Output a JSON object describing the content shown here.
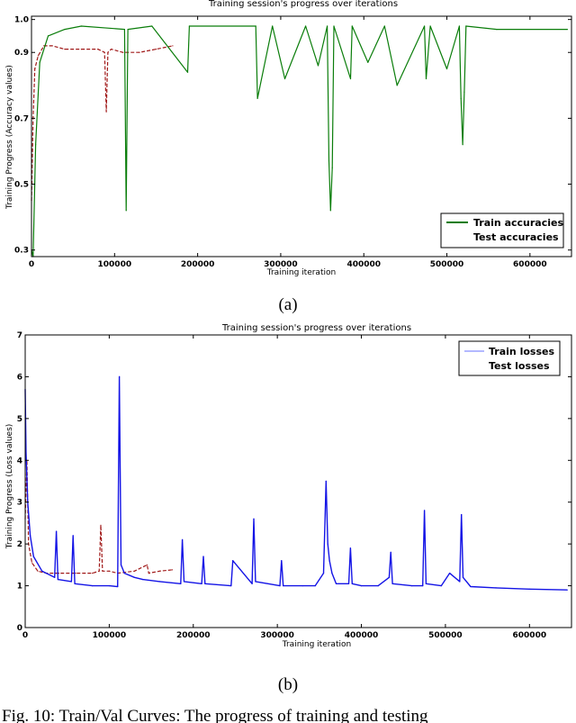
{
  "figure_caption": "Fig. 10: Train/Val Curves: The progress of training and testing",
  "panel_labels": [
    "(a)",
    "(b)"
  ],
  "colors": {
    "train_accuracy": "#0a7d0a",
    "test_curve": "#a01818",
    "train_loss": "#1414e6"
  },
  "chart_data": [
    {
      "type": "line",
      "title": "Training session's progress over iterations",
      "xlabel": "Training iteration",
      "ylabel": "Training Progress (Accuracy values)",
      "xlim": [
        0,
        650000
      ],
      "ylim": [
        0.28,
        1.01
      ],
      "xticks": [
        0,
        100000,
        200000,
        300000,
        400000,
        500000,
        600000
      ],
      "xtick_labels": [
        "0",
        "100000",
        "200000",
        "300000",
        "400000",
        "500000",
        "600000"
      ],
      "yticks": [
        0.3,
        0.5,
        0.7,
        0.9,
        1.0
      ],
      "ytick_labels": [
        "0.3",
        "0.5",
        "0.7",
        "0.9",
        "1.0"
      ],
      "grid": false,
      "legend_position": "bottom-right",
      "series": [
        {
          "name": "Train accuracies",
          "color": "#0a7d0a",
          "baseline": 0.98,
          "x": [
            0,
            2000,
            5000,
            10000,
            20000,
            40000,
            60000,
            112000,
            114000,
            116000,
            145000,
            188000,
            190000,
            270000,
            272000,
            290000,
            305000,
            330000,
            345000,
            356000,
            358000,
            360000,
            362000,
            364000,
            384000,
            386000,
            405000,
            425000,
            440000,
            473000,
            475000,
            480000,
            500000,
            515000,
            517000,
            519000,
            521000,
            523000,
            560000,
            645000
          ],
          "y": [
            0.3,
            0.28,
            0.62,
            0.87,
            0.95,
            0.97,
            0.98,
            0.97,
            0.42,
            0.97,
            0.98,
            0.84,
            0.98,
            0.98,
            0.76,
            0.98,
            0.82,
            0.98,
            0.86,
            0.98,
            0.57,
            0.42,
            0.55,
            0.98,
            0.82,
            0.98,
            0.87,
            0.98,
            0.8,
            0.98,
            0.82,
            0.98,
            0.85,
            0.98,
            0.76,
            0.62,
            0.78,
            0.98,
            0.97,
            0.97
          ]
        },
        {
          "name": "Test accuracies",
          "color": "#a01818",
          "x": [
            0,
            2000,
            4000,
            8000,
            15000,
            25000,
            40000,
            60000,
            80000,
            88000,
            90000,
            92000,
            96000,
            110000,
            130000,
            150000,
            170000
          ],
          "y": [
            0.45,
            0.7,
            0.85,
            0.89,
            0.92,
            0.92,
            0.91,
            0.91,
            0.91,
            0.9,
            0.72,
            0.9,
            0.91,
            0.9,
            0.9,
            0.91,
            0.92
          ]
        }
      ]
    },
    {
      "type": "line",
      "title": "Training session's progress over iterations",
      "xlabel": "Training iteration",
      "ylabel": "Training Progress (Loss values)",
      "xlim": [
        0,
        650000
      ],
      "ylim": [
        0,
        7
      ],
      "xticks": [
        0,
        100000,
        200000,
        300000,
        400000,
        500000,
        600000
      ],
      "xtick_labels": [
        "0",
        "100000",
        "200000",
        "300000",
        "400000",
        "500000",
        "600000"
      ],
      "yticks": [
        0,
        1,
        2,
        3,
        4,
        5,
        6,
        7
      ],
      "ytick_labels": [
        "0",
        "1",
        "2",
        "3",
        "4",
        "5",
        "6",
        "7"
      ],
      "grid": false,
      "legend_position": "top-right",
      "series": [
        {
          "name": "Train losses",
          "color": "#1414e6",
          "x": [
            0,
            1000,
            3000,
            6000,
            10000,
            20000,
            35000,
            37000,
            39000,
            55000,
            57000,
            59000,
            80000,
            100000,
            110000,
            112000,
            114000,
            118000,
            130000,
            140000,
            160000,
            185000,
            187000,
            189000,
            210000,
            212000,
            214000,
            245000,
            247000,
            270000,
            272000,
            274000,
            303000,
            305000,
            307000,
            330000,
            345000,
            355000,
            358000,
            360000,
            362000,
            365000,
            370000,
            385000,
            387000,
            389000,
            400000,
            420000,
            433000,
            435000,
            437000,
            460000,
            473000,
            475000,
            477000,
            495000,
            505000,
            517000,
            519000,
            521000,
            530000,
            560000,
            600000,
            645000
          ],
          "y": [
            5.7,
            4.2,
            3.0,
            2.2,
            1.7,
            1.35,
            1.2,
            2.3,
            1.15,
            1.1,
            2.2,
            1.05,
            1.0,
            1.0,
            0.98,
            6.0,
            1.5,
            1.3,
            1.2,
            1.15,
            1.1,
            1.05,
            2.1,
            1.1,
            1.05,
            1.7,
            1.05,
            1.0,
            1.6,
            1.05,
            2.6,
            1.1,
            1.0,
            1.6,
            1.0,
            1.0,
            1.0,
            1.3,
            3.5,
            2.0,
            1.6,
            1.3,
            1.05,
            1.05,
            1.9,
            1.05,
            1.0,
            1.0,
            1.2,
            1.8,
            1.05,
            1.0,
            1.0,
            2.8,
            1.05,
            1.0,
            1.3,
            1.1,
            2.7,
            1.2,
            0.98,
            0.95,
            0.92,
            0.9
          ]
        },
        {
          "name": "Test losses",
          "color": "#a01818",
          "x": [
            0,
            2000,
            4000,
            8000,
            15000,
            25000,
            40000,
            60000,
            80000,
            88000,
            90000,
            92000,
            100000,
            110000,
            130000,
            145000,
            147000,
            160000,
            175000
          ],
          "y": [
            2.6,
            4.0,
            2.0,
            1.55,
            1.35,
            1.3,
            1.3,
            1.3,
            1.3,
            1.35,
            2.45,
            1.35,
            1.35,
            1.3,
            1.35,
            1.5,
            1.3,
            1.35,
            1.38
          ]
        }
      ]
    }
  ]
}
